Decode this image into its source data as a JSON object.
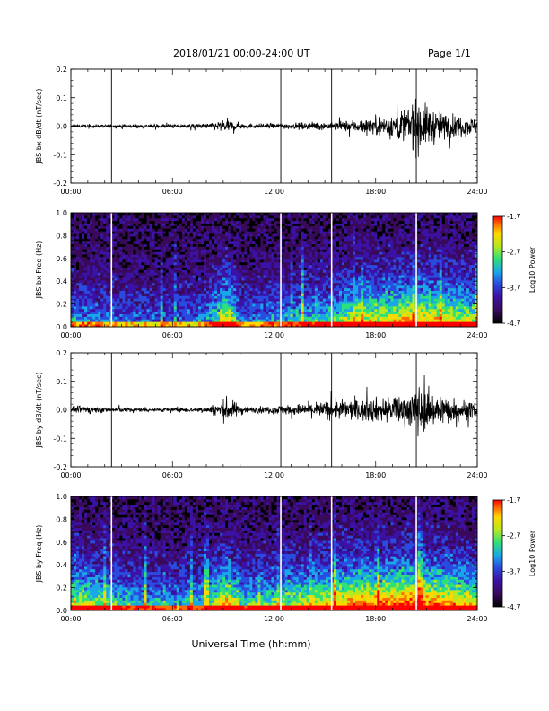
{
  "header": {
    "title": "2018/01/21  00:00-24:00 UT",
    "page": "Page 1/1"
  },
  "footer": {
    "xlabel": "Universal Time (hh:mm)"
  },
  "colors": {
    "trace": "#000000",
    "marker_lines_trace": "#000000",
    "marker_lines_spectrogram": "#ffffff",
    "colorbar": [
      "#000000",
      "#3a0a5a",
      "#3b12a5",
      "#2a4be0",
      "#19a7e8",
      "#2ee07a",
      "#b8e81e",
      "#ffd800",
      "#ff6a00",
      "#ff0000"
    ]
  },
  "time_ticks": [
    "00:00",
    "06:00",
    "12:00",
    "18:00",
    "24:00"
  ],
  "marker_times_hours": [
    2.4,
    12.4,
    15.4,
    20.4
  ],
  "chart_data": [
    {
      "type": "line",
      "ylabel": "JBS bx dB/dt (nT/sec)",
      "xlim": [
        0,
        24
      ],
      "ylim": [
        -0.2,
        0.2
      ],
      "yticks": [
        "0.2",
        "0.1",
        "0.0",
        "-0.1",
        "-0.2"
      ],
      "xticks": [
        "00:00",
        "06:00",
        "12:00",
        "18:00",
        "24:00"
      ],
      "envelope": {
        "hours": [
          0,
          2,
          4,
          6,
          8,
          8.8,
          9.2,
          9.7,
          10.5,
          12,
          14,
          15.5,
          17,
          18,
          19,
          19.5,
          20,
          20.5,
          21,
          22,
          23,
          24
        ],
        "amplitude": [
          0.012,
          0.012,
          0.012,
          0.015,
          0.018,
          0.04,
          0.05,
          0.03,
          0.015,
          0.02,
          0.025,
          0.03,
          0.05,
          0.07,
          0.09,
          0.12,
          0.16,
          0.2,
          0.15,
          0.1,
          0.08,
          0.06
        ]
      }
    },
    {
      "type": "heatmap",
      "ylabel": "JBS bx Freq (Hz)",
      "xlim": [
        0,
        24
      ],
      "ylim": [
        0.0,
        1.0
      ],
      "yticks": [
        "1.0",
        "0.8",
        "0.6",
        "0.4",
        "0.2",
        "0.0"
      ],
      "xticks": [
        "00:00",
        "06:00",
        "12:00",
        "18:00",
        "24:00"
      ],
      "colorbar": {
        "label": "Log10 Power",
        "ticks": [
          "-1.7",
          "-2.7",
          "-3.7",
          "-4.7"
        ],
        "range": [
          -4.7,
          -1.7
        ]
      },
      "activity": {
        "hours": [
          0,
          2,
          4,
          6,
          8,
          9.2,
          10,
          12,
          14,
          16,
          17,
          18,
          19,
          20,
          21,
          22,
          23,
          24
        ],
        "level": [
          0.35,
          0.3,
          0.25,
          0.25,
          0.3,
          0.7,
          0.3,
          0.35,
          0.4,
          0.5,
          0.65,
          0.6,
          0.65,
          0.7,
          0.7,
          0.65,
          0.6,
          0.55
        ]
      }
    },
    {
      "type": "line",
      "ylabel": "JBS by dB/dt (nT/sec)",
      "xlim": [
        0,
        24
      ],
      "ylim": [
        -0.2,
        0.2
      ],
      "yticks": [
        "0.2",
        "0.1",
        "0.0",
        "-0.1",
        "-0.2"
      ],
      "xticks": [
        "00:00",
        "06:00",
        "12:00",
        "18:00",
        "24:00"
      ],
      "envelope": {
        "hours": [
          0,
          1,
          2,
          4,
          6,
          8,
          8.8,
          9.2,
          9.8,
          10.5,
          12,
          14,
          15.5,
          17,
          18,
          19,
          20,
          20.5,
          21,
          22,
          23,
          24
        ],
        "amplitude": [
          0.02,
          0.03,
          0.02,
          0.015,
          0.015,
          0.02,
          0.06,
          0.09,
          0.05,
          0.02,
          0.03,
          0.05,
          0.07,
          0.08,
          0.09,
          0.1,
          0.12,
          0.2,
          0.14,
          0.11,
          0.08,
          0.05
        ]
      }
    },
    {
      "type": "heatmap",
      "ylabel": "JBS by Freq (Hz)",
      "xlim": [
        0,
        24
      ],
      "ylim": [
        0.0,
        1.0
      ],
      "yticks": [
        "1.0",
        "0.8",
        "0.6",
        "0.4",
        "0.2",
        "0.0"
      ],
      "xticks": [
        "00:00",
        "06:00",
        "12:00",
        "18:00",
        "24:00"
      ],
      "colorbar": {
        "label": "Log10 Power",
        "ticks": [
          "-1.7",
          "-2.7",
          "-3.7",
          "-4.7"
        ],
        "range": [
          -4.7,
          -1.7
        ]
      },
      "activity": {
        "hours": [
          0,
          1,
          2,
          4,
          6,
          8,
          9.2,
          10,
          12,
          14,
          16,
          17,
          18,
          19,
          20,
          21,
          22,
          23,
          24
        ],
        "level": [
          0.55,
          0.6,
          0.5,
          0.4,
          0.35,
          0.4,
          0.75,
          0.45,
          0.5,
          0.6,
          0.7,
          0.8,
          0.75,
          0.8,
          0.85,
          0.8,
          0.75,
          0.7,
          0.65
        ]
      }
    }
  ]
}
